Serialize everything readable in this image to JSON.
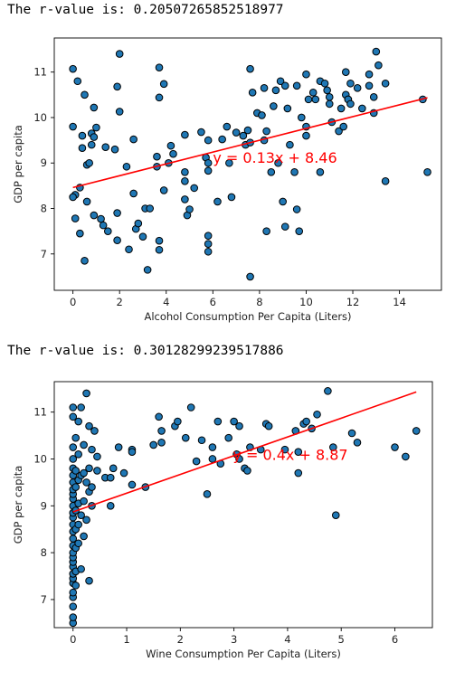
{
  "output": {
    "r_text_1": "The r-value is: 0.20507265852518977",
    "r_text_2": "The r-value is: 0.30128299239517886"
  },
  "colors": {
    "marker_fill": "#1f77b4",
    "marker_edge": "#000000",
    "line": "#ff0000",
    "annotation": "#ff0000",
    "axes": "#000000"
  },
  "chart_data": [
    {
      "type": "scatter",
      "xlabel": "Alcohol Consumption Per Capita (Liters)",
      "ylabel": "GDP per capita",
      "xlim": [
        -0.8,
        15.8
      ],
      "ylim": [
        6.2,
        11.75
      ],
      "xticks": [
        0,
        2,
        4,
        6,
        8,
        10,
        12,
        14
      ],
      "yticks": [
        7,
        8,
        9,
        10,
        11
      ],
      "grid": false,
      "regression": {
        "slope": 0.13,
        "intercept": 8.46,
        "x_range": [
          0,
          15.2
        ]
      },
      "annotation": {
        "text": "y = 0.13x + 8.46",
        "x": 6.0,
        "y": 9.0
      },
      "points": [
        [
          0,
          11.07
        ],
        [
          0.2,
          10.8
        ],
        [
          0,
          9.8
        ],
        [
          0.1,
          8.3
        ],
        [
          0,
          8.25
        ],
        [
          0.1,
          7.78
        ],
        [
          0.3,
          7.45
        ],
        [
          0.3,
          8.46
        ],
        [
          0.5,
          6.85
        ],
        [
          0.4,
          9.6
        ],
        [
          0.4,
          9.33
        ],
        [
          0.5,
          10.5
        ],
        [
          0.6,
          8.96
        ],
        [
          0.7,
          9.0
        ],
        [
          0.6,
          8.15
        ],
        [
          0.8,
          9.65
        ],
        [
          0.8,
          9.4
        ],
        [
          0.9,
          9.57
        ],
        [
          0.9,
          10.22
        ],
        [
          1,
          9.78
        ],
        [
          0.9,
          7.85
        ],
        [
          1.2,
          7.77
        ],
        [
          1.3,
          7.63
        ],
        [
          1.4,
          9.35
        ],
        [
          1.5,
          7.5
        ],
        [
          1.8,
          9.3
        ],
        [
          1.9,
          10.68
        ],
        [
          2,
          11.4
        ],
        [
          2,
          10.13
        ],
        [
          1.9,
          7.9
        ],
        [
          1.9,
          7.3
        ],
        [
          2.3,
          8.92
        ],
        [
          2.4,
          7.1
        ],
        [
          2.6,
          9.52
        ],
        [
          2.6,
          8.33
        ],
        [
          2.7,
          7.55
        ],
        [
          2.8,
          7.67
        ],
        [
          3,
          7.38
        ],
        [
          3.1,
          8.0
        ],
        [
          3.2,
          6.65
        ],
        [
          3.3,
          8.0
        ],
        [
          3.6,
          9.14
        ],
        [
          3.6,
          8.92
        ],
        [
          3.7,
          7.29
        ],
        [
          3.7,
          7.09
        ],
        [
          3.7,
          10.44
        ],
        [
          3.7,
          11.1
        ],
        [
          3.9,
          8.4
        ],
        [
          3.9,
          10.74
        ],
        [
          4.1,
          9.0
        ],
        [
          4.2,
          9.38
        ],
        [
          4.3,
          9.2
        ],
        [
          4.8,
          9.62
        ],
        [
          4.8,
          8.8
        ],
        [
          4.8,
          8.6
        ],
        [
          4.8,
          8.2
        ],
        [
          4.9,
          7.85
        ],
        [
          5,
          7.98
        ],
        [
          5.2,
          8.45
        ],
        [
          5.5,
          9.68
        ],
        [
          5.7,
          9.12
        ],
        [
          5.8,
          9.0
        ],
        [
          5.8,
          8.83
        ],
        [
          5.8,
          7.4
        ],
        [
          5.8,
          7.22
        ],
        [
          5.8,
          7.05
        ],
        [
          5.8,
          9.5
        ],
        [
          6.2,
          8.15
        ],
        [
          6.4,
          9.52
        ],
        [
          6.6,
          9.8
        ],
        [
          6.7,
          9.0
        ],
        [
          6.8,
          8.25
        ],
        [
          7,
          9.67
        ],
        [
          7.3,
          9.6
        ],
        [
          7.4,
          9.4
        ],
        [
          7.5,
          9.72
        ],
        [
          7.6,
          9.45
        ],
        [
          7.6,
          11.07
        ],
        [
          7.6,
          6.5
        ],
        [
          7.7,
          10.55
        ],
        [
          7.9,
          10.1
        ],
        [
          8.1,
          10.05
        ],
        [
          8.2,
          10.65
        ],
        [
          8.2,
          9.5
        ],
        [
          8.3,
          9.7
        ],
        [
          8.3,
          7.5
        ],
        [
          8.5,
          8.8
        ],
        [
          8.6,
          10.25
        ],
        [
          8.7,
          10.6
        ],
        [
          8.8,
          9.0
        ],
        [
          8.9,
          10.8
        ],
        [
          9,
          8.15
        ],
        [
          9.1,
          10.7
        ],
        [
          9.1,
          7.6
        ],
        [
          9.2,
          10.2
        ],
        [
          9.3,
          9.4
        ],
        [
          9.5,
          8.8
        ],
        [
          9.6,
          10.7
        ],
        [
          9.6,
          7.98
        ],
        [
          9.7,
          7.5
        ],
        [
          9.8,
          10.0
        ],
        [
          10,
          10.95
        ],
        [
          10,
          9.6
        ],
        [
          10,
          9.8
        ],
        [
          10.1,
          10.4
        ],
        [
          10.3,
          10.55
        ],
        [
          10.4,
          10.4
        ],
        [
          10.6,
          8.8
        ],
        [
          10.6,
          10.8
        ],
        [
          10.8,
          10.75
        ],
        [
          10.9,
          10.6
        ],
        [
          11,
          10.45
        ],
        [
          11,
          10.3
        ],
        [
          11.1,
          9.9
        ],
        [
          11.4,
          9.7
        ],
        [
          11.5,
          10.2
        ],
        [
          11.6,
          9.8
        ],
        [
          11.7,
          11.0
        ],
        [
          11.7,
          10.5
        ],
        [
          11.8,
          10.4
        ],
        [
          11.8,
          10.4
        ],
        [
          11.9,
          10.75
        ],
        [
          11.9,
          10.3
        ],
        [
          12.2,
          10.65
        ],
        [
          12.4,
          10.2
        ],
        [
          12.7,
          10.95
        ],
        [
          12.7,
          10.7
        ],
        [
          12.9,
          10.45
        ],
        [
          12.9,
          10.1
        ],
        [
          13,
          11.45
        ],
        [
          13.1,
          11.15
        ],
        [
          13.4,
          10.75
        ],
        [
          13.4,
          8.6
        ],
        [
          15,
          10.4
        ],
        [
          15.2,
          8.8
        ]
      ]
    },
    {
      "type": "scatter",
      "xlabel": "Wine Consumption Per Capita (Liters)",
      "ylabel": "GDP per capita",
      "xlim": [
        -0.35,
        6.7
      ],
      "ylim": [
        6.4,
        11.65
      ],
      "xticks": [
        0,
        1,
        2,
        3,
        4,
        5,
        6
      ],
      "yticks": [
        7,
        8,
        9,
        10,
        11
      ],
      "grid": false,
      "regression": {
        "slope": 0.4,
        "intercept": 8.87,
        "x_range": [
          0,
          6.4
        ]
      },
      "annotation": {
        "text": "y = 0.4x + 8.87",
        "x": 2.98,
        "y": 9.98
      },
      "points": [
        [
          0,
          6.5
        ],
        [
          0,
          6.62
        ],
        [
          0,
          6.85
        ],
        [
          0,
          7.05
        ],
        [
          0,
          7.15
        ],
        [
          0,
          7.35
        ],
        [
          0,
          7.45
        ],
        [
          0,
          7.55
        ],
        [
          0,
          7.7
        ],
        [
          0,
          7.8
        ],
        [
          0,
          7.9
        ],
        [
          0,
          8.0
        ],
        [
          0,
          8.15
        ],
        [
          0,
          8.3
        ],
        [
          0,
          8.45
        ],
        [
          0,
          8.6
        ],
        [
          0,
          8.75
        ],
        [
          0,
          8.85
        ],
        [
          0,
          9.0
        ],
        [
          0,
          9.15
        ],
        [
          0,
          9.25
        ],
        [
          0,
          9.35
        ],
        [
          0,
          9.5
        ],
        [
          0,
          9.65
        ],
        [
          0,
          9.8
        ],
        [
          0,
          10.0
        ],
        [
          0,
          10.25
        ],
        [
          0,
          10.9
        ],
        [
          0,
          11.1
        ],
        [
          0.05,
          7.3
        ],
        [
          0.05,
          7.6
        ],
        [
          0.05,
          8.1
        ],
        [
          0.05,
          8.5
        ],
        [
          0.05,
          8.9
        ],
        [
          0.05,
          9.4
        ],
        [
          0.05,
          9.75
        ],
        [
          0.05,
          10.45
        ],
        [
          0.1,
          8.2
        ],
        [
          0.1,
          8.6
        ],
        [
          0.1,
          9.05
        ],
        [
          0.1,
          9.55
        ],
        [
          0.1,
          10.1
        ],
        [
          0.1,
          10.8
        ],
        [
          0.15,
          7.65
        ],
        [
          0.15,
          8.8
        ],
        [
          0.15,
          9.65
        ],
        [
          0.15,
          11.1
        ],
        [
          0.2,
          8.35
        ],
        [
          0.2,
          9.1
        ],
        [
          0.2,
          9.7
        ],
        [
          0.2,
          10.3
        ],
        [
          0.25,
          8.7
        ],
        [
          0.25,
          9.5
        ],
        [
          0.25,
          11.4
        ],
        [
          0.3,
          7.4
        ],
        [
          0.3,
          9.3
        ],
        [
          0.3,
          9.8
        ],
        [
          0.3,
          10.7
        ],
        [
          0.35,
          9.0
        ],
        [
          0.35,
          9.4
        ],
        [
          0.35,
          10.2
        ],
        [
          0.4,
          10.6
        ],
        [
          0.45,
          9.75
        ],
        [
          0.45,
          10.05
        ],
        [
          0.6,
          9.6
        ],
        [
          0.7,
          9.6
        ],
        [
          0.7,
          9.0
        ],
        [
          0.75,
          9.8
        ],
        [
          0.85,
          10.25
        ],
        [
          0.95,
          9.7
        ],
        [
          1.1,
          10.2
        ],
        [
          1.1,
          10.15
        ],
        [
          1.1,
          9.45
        ],
        [
          1.35,
          9.4
        ],
        [
          1.5,
          10.3
        ],
        [
          1.6,
          10.9
        ],
        [
          1.65,
          10.35
        ],
        [
          1.65,
          10.6
        ],
        [
          1.9,
          10.7
        ],
        [
          1.95,
          10.8
        ],
        [
          2.1,
          10.45
        ],
        [
          2.2,
          11.1
        ],
        [
          2.3,
          9.95
        ],
        [
          2.4,
          10.4
        ],
        [
          2.5,
          9.25
        ],
        [
          2.6,
          10.0
        ],
        [
          2.6,
          10.25
        ],
        [
          2.7,
          10.8
        ],
        [
          2.75,
          9.9
        ],
        [
          2.9,
          10.45
        ],
        [
          3.0,
          10.8
        ],
        [
          3.05,
          10.1
        ],
        [
          3.1,
          10.7
        ],
        [
          3.1,
          10.0
        ],
        [
          3.2,
          9.8
        ],
        [
          3.25,
          9.75
        ],
        [
          3.3,
          10.25
        ],
        [
          3.5,
          10.2
        ],
        [
          3.6,
          10.75
        ],
        [
          3.65,
          10.7
        ],
        [
          3.95,
          10.2
        ],
        [
          4.15,
          10.6
        ],
        [
          4.2,
          10.15
        ],
        [
          4.2,
          9.7
        ],
        [
          4.3,
          10.75
        ],
        [
          4.35,
          10.8
        ],
        [
          4.45,
          10.65
        ],
        [
          4.55,
          10.95
        ],
        [
          4.75,
          11.45
        ],
        [
          4.85,
          10.25
        ],
        [
          4.9,
          8.8
        ],
        [
          5.2,
          10.55
        ],
        [
          5.3,
          10.35
        ],
        [
          6.0,
          10.25
        ],
        [
          6.2,
          10.05
        ],
        [
          6.4,
          10.6
        ]
      ]
    }
  ]
}
